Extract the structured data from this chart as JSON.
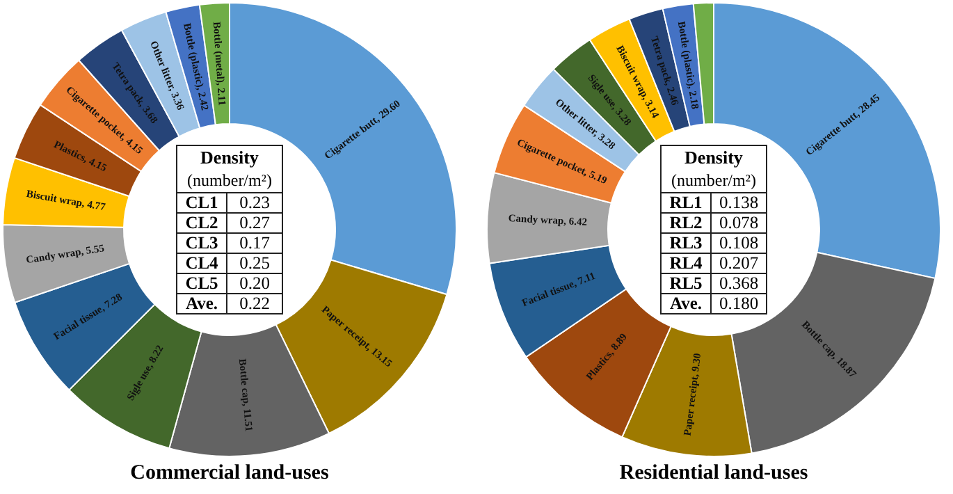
{
  "chart_data": [
    {
      "type": "donut",
      "title": "Commercial land-uses",
      "categories": [
        "Cigarette butt",
        "Paper receipt",
        "Bottle cap",
        "Sigle use",
        "Facial tissue",
        "Candy wrap",
        "Biscuit wrap",
        "Plastics",
        "Cigarette pocket",
        "Tetra pack",
        "Other litter",
        "Bottle (plastic)",
        "Bottle (metal)"
      ],
      "values": [
        29.6,
        13.15,
        11.51,
        8.22,
        7.28,
        5.55,
        4.77,
        4.15,
        4.15,
        3.68,
        3.36,
        2.42,
        2.11
      ],
      "value_labels": [
        "29.60",
        "13.15",
        "11.51",
        "8.22",
        "7.28",
        "5.55",
        "4.77",
        "4.15",
        "4.15",
        "3.68",
        "3.36",
        "2.42",
        "2.11"
      ],
      "colors": [
        "#5b9bd5",
        "#9e7a00",
        "#636363",
        "#43682b",
        "#255e91",
        "#a5a5a5",
        "#ffc000",
        "#9e480e",
        "#ed7d31",
        "#264478",
        "#9dc3e6",
        "#4472c4",
        "#70ad47"
      ],
      "annotations": [
        "Density",
        "(number/m²)",
        "CL1",
        "0.23",
        "CL2",
        "0.27",
        "CL3",
        "0.17",
        "CL4",
        "0.25",
        "CL5",
        "0.20",
        "Ave.",
        "0.22"
      ]
    },
    {
      "type": "donut",
      "title": "Residential land-uses",
      "categories": [
        "Cigarette butt",
        "Bottle cap",
        "Paper receipt",
        "Plastics",
        "Facial tissue",
        "Candy wrap",
        "Cigarette pocket",
        "Other litter",
        "Sigle use",
        "Biscuit wrap",
        "Tetra pack",
        "Bottle (plastic)",
        null
      ],
      "values": [
        28.45,
        18.87,
        9.3,
        8.89,
        7.11,
        6.42,
        5.19,
        3.28,
        3.28,
        3.14,
        2.46,
        2.18,
        1.43
      ],
      "value_labels": [
        "28.45",
        "18.87",
        "9.30",
        "8.89",
        "7.11",
        "6.42",
        "5.19",
        "3.28",
        "3.28",
        "3.14",
        "2.46",
        "2.18",
        null
      ],
      "colors": [
        "#5b9bd5",
        "#636363",
        "#9e7a00",
        "#9e480e",
        "#255e91",
        "#a5a5a5",
        "#ed7d31",
        "#9dc3e6",
        "#43682b",
        "#ffc000",
        "#264478",
        "#4472c4",
        "#70ad47"
      ],
      "annotations": [
        "Density",
        "(number/m²)",
        "RL1",
        "0.138",
        "RL2",
        "0.078",
        "RL3",
        "0.108",
        "RL4",
        "0.207",
        "RL5",
        "0.368",
        "Ave.",
        "0.180"
      ]
    }
  ]
}
